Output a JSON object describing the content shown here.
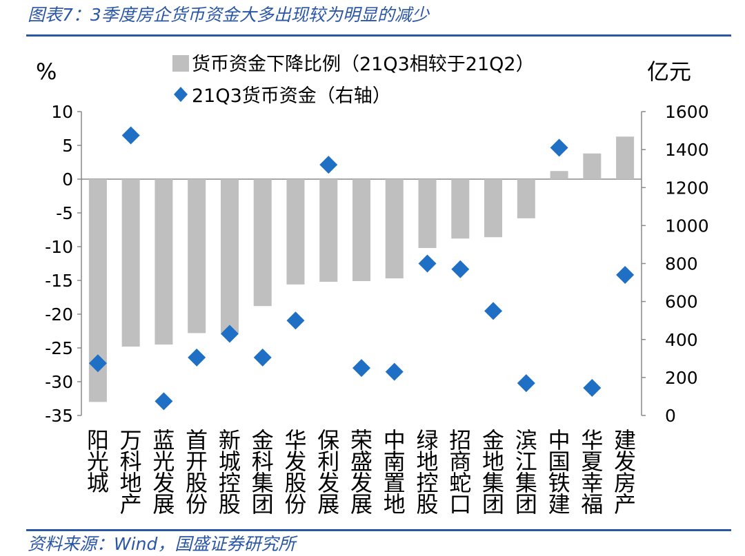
{
  "title": "图表7：3季度房企货币资金大多出现较为明显的减少",
  "source": "资料来源：Wind，国盛证券研究所",
  "chart_data": {
    "type": "bar",
    "categories": [
      "阳光城",
      "万科地产",
      "蓝光发展",
      "首开股份",
      "新城控股",
      "金科集团",
      "华发股份",
      "保利发展",
      "荣盛发展",
      "中南置地",
      "绿地控股",
      "招商蛇口",
      "金地集团",
      "滨江集团",
      "中国铁建",
      "华夏幸福",
      "建发房产"
    ],
    "series": [
      {
        "name": "货币资金下降比例（21Q3相较于21Q2）",
        "axis": "left",
        "kind": "bar",
        "color": "#bfbfbf",
        "values": [
          -33,
          -24.8,
          -24.5,
          -22.8,
          -22.8,
          -18.8,
          -15.6,
          -15.2,
          -15.1,
          -14.7,
          -10.2,
          -8.8,
          -8.6,
          -5.8,
          1.2,
          3.8,
          6.3
        ]
      },
      {
        "name": "21Q3货币资金（右轴）",
        "axis": "right",
        "kind": "scatter",
        "marker": "diamond",
        "color": "#1f6fc5",
        "values": [
          275,
          1475,
          75,
          305,
          430,
          305,
          500,
          1320,
          250,
          230,
          800,
          770,
          550,
          170,
          1410,
          145,
          740
        ]
      }
    ],
    "left_axis": {
      "label": "%",
      "ylim": [
        -35,
        10
      ],
      "ticks": [
        10,
        5,
        0,
        -5,
        -10,
        -15,
        -20,
        -25,
        -30,
        -35
      ]
    },
    "right_axis": {
      "label": "亿元",
      "ylim": [
        0,
        1600
      ],
      "ticks": [
        1600,
        1400,
        1200,
        1000,
        800,
        600,
        400,
        200,
        0
      ]
    },
    "legend_position": "top-center",
    "grid": false
  }
}
